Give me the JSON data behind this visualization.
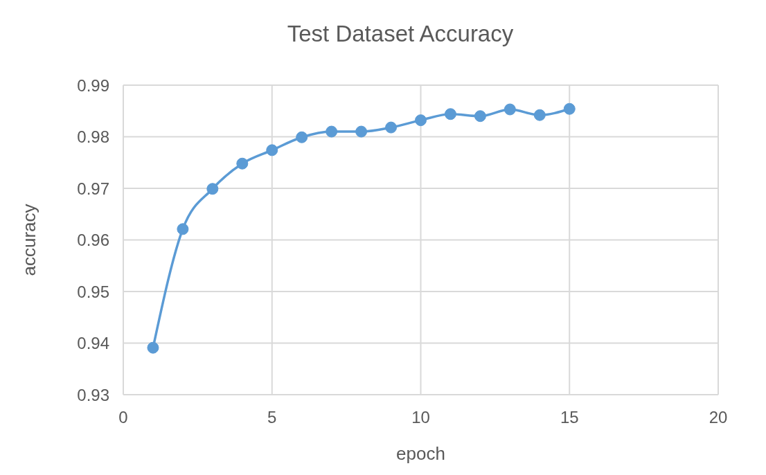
{
  "chart_data": {
    "type": "line",
    "title": "Test Dataset Accuracy",
    "xlabel": "epoch",
    "ylabel": "accuracy",
    "x": [
      1,
      2,
      3,
      4,
      5,
      6,
      7,
      8,
      9,
      10,
      11,
      12,
      13,
      14,
      15
    ],
    "series": [
      {
        "color": "#5b9bd5",
        "values": [
          0.9391,
          0.9621,
          0.9699,
          0.9748,
          0.9774,
          0.9799,
          0.981,
          0.981,
          0.9818,
          0.9832,
          0.9844,
          0.984,
          0.9853,
          0.9842,
          0.9854
        ]
      }
    ],
    "xlim": [
      0,
      20
    ],
    "xticks": [
      0,
      5,
      10,
      15,
      20
    ],
    "ylim": [
      0.93,
      0.99
    ],
    "yticks": [
      0.93,
      0.94,
      0.95,
      0.96,
      0.97,
      0.98,
      0.99
    ],
    "grid": true,
    "marker": "circle",
    "line_style": "solid"
  }
}
